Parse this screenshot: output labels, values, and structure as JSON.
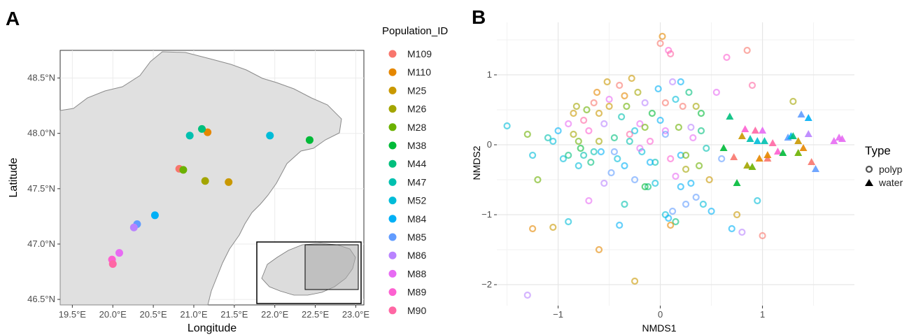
{
  "panel_a": {
    "label": "A",
    "chart_data": {
      "type": "scatter",
      "xlabel": "Longitude",
      "ylabel": "Latitude",
      "xlim": [
        19.35,
        23.1
      ],
      "ylim": [
        46.45,
        48.75
      ],
      "xticks": [
        {
          "v": 19.5,
          "label": "19.5°E"
        },
        {
          "v": 20.0,
          "label": "20.0°E"
        },
        {
          "v": 20.5,
          "label": "20.5°E"
        },
        {
          "v": 21.0,
          "label": "21.0°E"
        },
        {
          "v": 21.5,
          "label": "21.5°E"
        },
        {
          "v": 22.0,
          "label": "22.0°E"
        },
        {
          "v": 22.5,
          "label": "22.5°E"
        },
        {
          "v": 23.0,
          "label": "23.0°E"
        }
      ],
      "yticks": [
        {
          "v": 46.5,
          "label": "46.5°N"
        },
        {
          "v": 47.0,
          "label": "47.0°N"
        },
        {
          "v": 47.5,
          "label": "47.5°N"
        },
        {
          "v": 48.0,
          "label": "48.0°N"
        },
        {
          "v": 48.5,
          "label": "48.5°N"
        }
      ],
      "grid": true,
      "basemap": "region outline (grey fill) with inset overview map",
      "legend_title": "Population_ID",
      "legend_position": "right",
      "series": [
        {
          "name": "M109",
          "color": "#F8766D",
          "points": [
            [
              20.82,
              47.68
            ]
          ]
        },
        {
          "name": "M110",
          "color": "#E58700",
          "points": [
            [
              21.17,
              48.01
            ]
          ]
        },
        {
          "name": "M25",
          "color": "#C99800",
          "points": [
            [
              21.43,
              47.56
            ]
          ]
        },
        {
          "name": "M26",
          "color": "#A3A500",
          "points": [
            [
              21.14,
              47.57
            ]
          ]
        },
        {
          "name": "M28",
          "color": "#6BB100",
          "points": [
            [
              20.87,
              47.67
            ]
          ]
        },
        {
          "name": "M38",
          "color": "#00BA38",
          "points": [
            [
              22.43,
              47.94
            ]
          ]
        },
        {
          "name": "M44",
          "color": "#00BF7D",
          "points": [
            [
              21.1,
              48.04
            ]
          ]
        },
        {
          "name": "M47",
          "color": "#00C0AF",
          "points": [
            [
              20.95,
              47.98
            ]
          ]
        },
        {
          "name": "M52",
          "color": "#00BCD8",
          "points": [
            [
              21.94,
              47.98
            ]
          ]
        },
        {
          "name": "M84",
          "color": "#00B0F6",
          "points": [
            [
              20.52,
              47.26
            ]
          ]
        },
        {
          "name": "M85",
          "color": "#619CFF",
          "points": [
            [
              20.3,
              47.18
            ]
          ]
        },
        {
          "name": "M86",
          "color": "#B983FF",
          "points": [
            [
              20.26,
              47.15
            ]
          ]
        },
        {
          "name": "M88",
          "color": "#E76BF3",
          "points": [
            [
              20.08,
              46.92
            ]
          ]
        },
        {
          "name": "M89",
          "color": "#FD61D1",
          "points": [
            [
              19.99,
              46.86
            ]
          ]
        },
        {
          "name": "M90",
          "color": "#FF67A4",
          "points": [
            [
              20.0,
              46.82
            ]
          ]
        }
      ]
    }
  },
  "panel_b": {
    "label": "B",
    "chart_data": {
      "type": "scatter",
      "xlabel": "NMDS1",
      "ylabel": "NMDS2",
      "xlim": [
        -1.6,
        1.9
      ],
      "ylim": [
        -2.3,
        1.75
      ],
      "xticks": [
        {
          "v": -1,
          "label": "−1"
        },
        {
          "v": 0,
          "label": "0"
        },
        {
          "v": 1,
          "label": "1"
        }
      ],
      "yticks": [
        {
          "v": -2,
          "label": "−2"
        },
        {
          "v": -1,
          "label": "−1"
        },
        {
          "v": 0,
          "label": "0"
        },
        {
          "v": 1,
          "label": "1"
        }
      ],
      "grid": true,
      "legend_title": "Type",
      "legend_position": "right",
      "legend_items": [
        {
          "label": "polyp",
          "shape": "ring"
        },
        {
          "label": "water",
          "shape": "triangle"
        }
      ],
      "marker_colors": [
        "#F8766D",
        "#E58700",
        "#C99800",
        "#A3A500",
        "#6BB100",
        "#00BA38",
        "#00BF7D",
        "#00C0AF",
        "#00BCD8",
        "#00B0F6",
        "#619CFF",
        "#B983FF",
        "#E76BF3",
        "#FD61D1",
        "#FF67A4"
      ],
      "series": [
        {
          "name": "polyp",
          "shape": "ring",
          "points": [
            [
              -1.5,
              0.27,
              8
            ],
            [
              -1.3,
              0.15,
              4
            ],
            [
              -1.25,
              -0.15,
              8
            ],
            [
              -1.2,
              -0.5,
              4
            ],
            [
              -1.1,
              0.1,
              7
            ],
            [
              -1.05,
              0.05,
              8
            ],
            [
              -1.0,
              0.2,
              9
            ],
            [
              -0.95,
              -0.2,
              8
            ],
            [
              -0.9,
              -1.1,
              8
            ],
            [
              -0.9,
              0.3,
              12
            ],
            [
              -0.85,
              0.45,
              2
            ],
            [
              -0.85,
              0.15,
              3
            ],
            [
              -0.82,
              0.55,
              3
            ],
            [
              -0.8,
              0.05,
              4
            ],
            [
              -0.78,
              -0.05,
              5
            ],
            [
              -0.75,
              -0.15,
              7
            ],
            [
              -0.72,
              0.5,
              4
            ],
            [
              -0.7,
              0.2,
              13
            ],
            [
              -0.68,
              -0.25,
              6
            ],
            [
              -0.65,
              0.6,
              0
            ],
            [
              -0.62,
              0.75,
              1
            ],
            [
              -0.6,
              0.45,
              2
            ],
            [
              -0.58,
              -0.1,
              9
            ],
            [
              -0.55,
              0.3,
              11
            ],
            [
              -0.52,
              0.9,
              2
            ],
            [
              -0.5,
              0.65,
              12
            ],
            [
              -0.48,
              -0.4,
              10
            ],
            [
              -0.45,
              0.1,
              6
            ],
            [
              -0.42,
              -0.2,
              8
            ],
            [
              -0.4,
              0.85,
              0
            ],
            [
              -0.38,
              0.4,
              7
            ],
            [
              -0.35,
              -0.3,
              9
            ],
            [
              -0.33,
              0.55,
              4
            ],
            [
              -0.3,
              0.15,
              14
            ],
            [
              -0.28,
              0.95,
              2
            ],
            [
              -0.25,
              -0.5,
              10
            ],
            [
              -0.22,
              0.75,
              3
            ],
            [
              -0.2,
              0.3,
              12
            ],
            [
              -0.18,
              -0.1,
              8
            ],
            [
              -0.15,
              0.6,
              11
            ],
            [
              -0.12,
              -0.6,
              6
            ],
            [
              -0.1,
              0.05,
              13
            ],
            [
              -0.08,
              0.45,
              5
            ],
            [
              -0.05,
              -0.25,
              7
            ],
            [
              -0.02,
              0.8,
              9
            ],
            [
              0.0,
              1.45,
              0
            ],
            [
              0.02,
              1.55,
              1
            ],
            [
              0.05,
              0.2,
              12
            ],
            [
              0.08,
              1.35,
              13
            ],
            [
              0.1,
              1.3,
              14
            ],
            [
              0.12,
              0.9,
              11
            ],
            [
              0.15,
              0.65,
              8
            ],
            [
              0.18,
              0.25,
              4
            ],
            [
              0.2,
              -0.15,
              9
            ],
            [
              0.22,
              0.55,
              0
            ],
            [
              0.25,
              -0.35,
              3
            ],
            [
              0.28,
              0.75,
              6
            ],
            [
              0.3,
              -0.55,
              9
            ],
            [
              0.32,
              0.1,
              12
            ],
            [
              0.35,
              -0.75,
              10
            ],
            [
              0.38,
              -0.3,
              4
            ],
            [
              0.4,
              0.45,
              5
            ],
            [
              0.42,
              -0.85,
              8
            ],
            [
              0.45,
              -0.05,
              7
            ],
            [
              0.48,
              -0.5,
              2
            ],
            [
              0.5,
              -0.95,
              9
            ],
            [
              0.55,
              0.75,
              12
            ],
            [
              0.6,
              -0.2,
              10
            ],
            [
              0.65,
              1.25,
              13
            ],
            [
              0.7,
              -1.2,
              9
            ],
            [
              0.75,
              -1.0,
              2
            ],
            [
              0.8,
              -1.25,
              11
            ],
            [
              0.85,
              1.35,
              0
            ],
            [
              0.9,
              0.85,
              14
            ],
            [
              0.95,
              -0.8,
              8
            ],
            [
              1.0,
              -1.3,
              0
            ],
            [
              1.3,
              0.62,
              3
            ],
            [
              -1.25,
              -1.2,
              1
            ],
            [
              -1.05,
              -1.18,
              2
            ],
            [
              -0.6,
              -1.5,
              1
            ],
            [
              -0.25,
              -1.95,
              2
            ],
            [
              -1.3,
              -2.15,
              11
            ],
            [
              0.05,
              -1.0,
              8
            ],
            [
              0.08,
              -1.05,
              9
            ],
            [
              0.12,
              -0.95,
              10
            ],
            [
              0.15,
              -1.1,
              6
            ],
            [
              -0.4,
              -1.15,
              9
            ],
            [
              -0.35,
              -0.85,
              7
            ],
            [
              0.1,
              -1.15,
              1
            ],
            [
              -0.15,
              -0.6,
              5
            ],
            [
              -0.7,
              -0.8,
              12
            ],
            [
              -0.55,
              -0.55,
              11
            ],
            [
              -0.3,
              0.05,
              7
            ],
            [
              -0.25,
              0.2,
              8
            ],
            [
              -0.6,
              0.05,
              3
            ],
            [
              -0.9,
              -0.15,
              6
            ],
            [
              0.0,
              0.35,
              9
            ],
            [
              0.05,
              0.15,
              10
            ],
            [
              0.3,
              0.25,
              11
            ],
            [
              0.2,
              -0.6,
              9
            ],
            [
              0.15,
              -0.45,
              12
            ],
            [
              0.25,
              -0.85,
              10
            ],
            [
              -0.15,
              0.25,
              4
            ],
            [
              -0.1,
              -0.25,
              9
            ],
            [
              0.35,
              0.55,
              3
            ],
            [
              0.1,
              -0.2,
              13
            ],
            [
              -0.05,
              -0.55,
              8
            ],
            [
              0.4,
              0.2,
              6
            ],
            [
              -0.45,
              -0.1,
              10
            ],
            [
              -0.65,
              -0.1,
              7
            ],
            [
              -0.75,
              0.35,
              14
            ],
            [
              -0.5,
              0.55,
              2
            ],
            [
              0.2,
              0.9,
              9
            ],
            [
              0.05,
              0.6,
              0
            ],
            [
              -0.2,
              -0.05,
              12
            ],
            [
              0.25,
              -0.15,
              4
            ],
            [
              -0.35,
              0.7,
              1
            ],
            [
              -0.8,
              -0.3,
              8
            ]
          ]
        },
        {
          "name": "water",
          "shape": "triangle",
          "points": [
            [
              0.62,
              -0.05,
              5
            ],
            [
              0.68,
              0.4,
              6
            ],
            [
              0.72,
              -0.18,
              0
            ],
            [
              0.75,
              -0.55,
              5
            ],
            [
              0.8,
              0.12,
              2
            ],
            [
              0.83,
              0.22,
              13
            ],
            [
              0.85,
              -0.3,
              3
            ],
            [
              0.88,
              0.08,
              7
            ],
            [
              0.9,
              -0.32,
              4
            ],
            [
              0.93,
              0.2,
              14
            ],
            [
              0.95,
              0.05,
              8
            ],
            [
              0.97,
              -0.2,
              1
            ],
            [
              1.0,
              0.2,
              12
            ],
            [
              1.02,
              0.05,
              7
            ],
            [
              1.05,
              -0.2,
              0
            ],
            [
              1.1,
              0.02,
              14
            ],
            [
              1.15,
              -0.1,
              13
            ],
            [
              1.2,
              -0.12,
              5
            ],
            [
              1.25,
              0.1,
              10
            ],
            [
              1.28,
              0.12,
              9
            ],
            [
              1.3,
              0.12,
              6
            ],
            [
              1.35,
              0.05,
              2
            ],
            [
              1.38,
              0.43,
              10
            ],
            [
              1.4,
              -0.05,
              1
            ],
            [
              1.45,
              0.38,
              9
            ],
            [
              1.48,
              -0.25,
              0
            ],
            [
              1.52,
              -0.35,
              10
            ],
            [
              1.7,
              0.05,
              12
            ],
            [
              1.75,
              0.1,
              12
            ],
            [
              1.78,
              0.08,
              12
            ],
            [
              1.35,
              -0.12,
              4
            ],
            [
              1.05,
              -0.15,
              1
            ],
            [
              1.45,
              0.15,
              11
            ]
          ]
        }
      ]
    }
  }
}
